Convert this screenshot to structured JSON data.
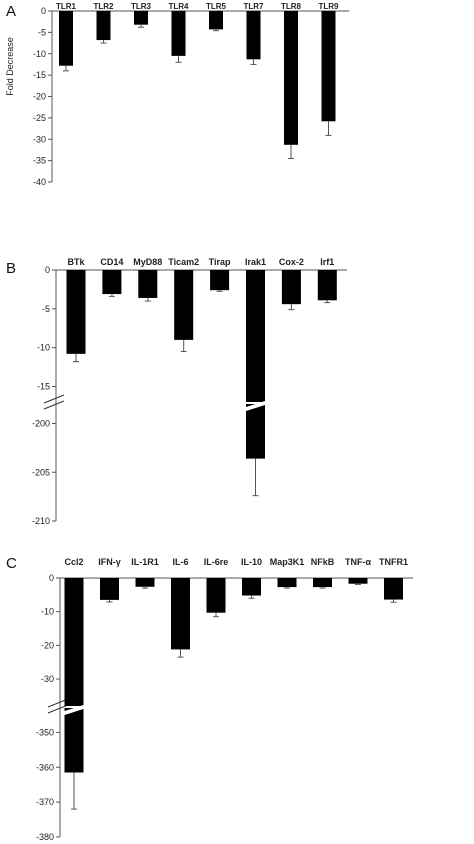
{
  "chart_data": [
    {
      "panel": "A",
      "type": "bar",
      "title": "",
      "xlabel": "",
      "ylabel": "Fold Decrease",
      "ylim": [
        -40,
        0
      ],
      "yticks": [
        0,
        -5,
        -10,
        -15,
        -20,
        -25,
        -30,
        -35,
        -40
      ],
      "categories": [
        "TLR1",
        "TLR2",
        "TLR3",
        "TLR4",
        "TLR5",
        "TLR7",
        "TLR8",
        "TLR9"
      ],
      "values": [
        -12.8,
        -6.8,
        -3.2,
        -10.5,
        -4.3,
        -11.3,
        -31.3,
        -25.8
      ],
      "errors": [
        1.2,
        0.7,
        0.6,
        1.5,
        0.3,
        1.2,
        3.2,
        3.3
      ],
      "bar_color": "#000000"
    },
    {
      "panel": "B",
      "type": "bar",
      "title": "",
      "xlabel": "",
      "ylabel": "",
      "axis_break": true,
      "upper_ylim": [
        -17,
        0
      ],
      "lower_ylim": [
        -210,
        -198
      ],
      "yticks": [
        0,
        -5,
        -10,
        -15,
        -200,
        -205,
        -210
      ],
      "categories": [
        "BTk",
        "CD14",
        "MyD88",
        "Ticam2",
        "Tirap",
        "Irak1",
        "Cox-2",
        "Irf1"
      ],
      "values": [
        -10.8,
        -3.1,
        -3.6,
        -9.0,
        -2.6,
        -203.6,
        -4.4,
        -3.9
      ],
      "errors": [
        1.0,
        0.3,
        0.4,
        1.5,
        0.15,
        3.8,
        0.7,
        0.3
      ],
      "bar_color": "#000000"
    },
    {
      "panel": "C",
      "type": "bar",
      "title": "",
      "xlabel": "",
      "ylabel": "",
      "axis_break": true,
      "upper_ylim": [
        -38,
        0
      ],
      "lower_ylim": [
        -380,
        -343
      ],
      "yticks": [
        0,
        -10,
        -20,
        -30,
        -350,
        -360,
        -370,
        -380
      ],
      "categories": [
        "Ccl2",
        "IFN-γ",
        "IL-1R1",
        "IL-6",
        "IL-6re",
        "IL-10",
        "Map3K1",
        "NFkB",
        "TNF-α",
        "TNFR1"
      ],
      "values": [
        -361.5,
        -6.5,
        -2.6,
        -21.2,
        -10.3,
        -5.2,
        -2.7,
        -2.7,
        -1.7,
        -6.4
      ],
      "errors": [
        10.5,
        0.6,
        0.4,
        2.3,
        1.2,
        0.8,
        0.3,
        0.3,
        0.2,
        0.8
      ],
      "bar_color": "#000000"
    }
  ]
}
